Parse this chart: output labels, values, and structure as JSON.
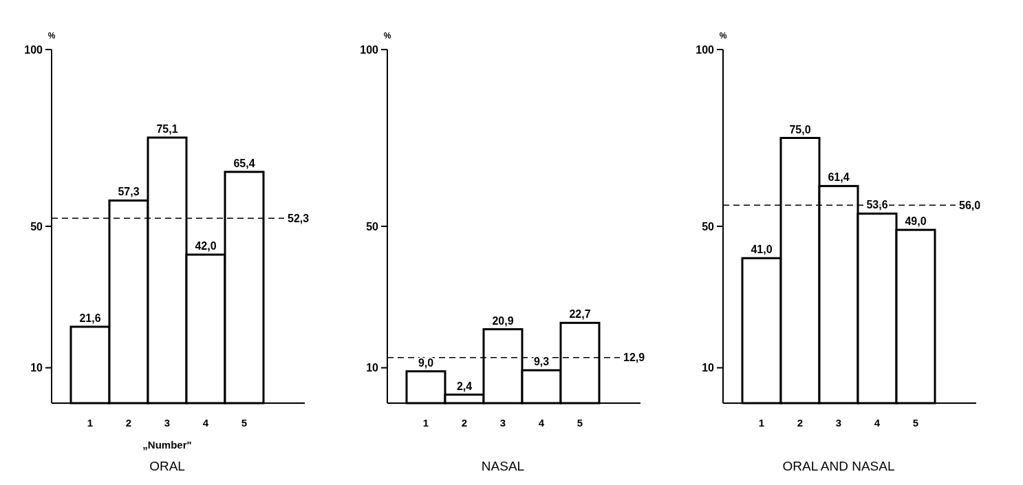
{
  "chart_data": [
    {
      "type": "bar",
      "title": "ORAL",
      "xlabel": "„Number\"",
      "ylabel": "%",
      "categories": [
        "1",
        "2",
        "3",
        "4",
        "5"
      ],
      "values": [
        21.6,
        57.3,
        75.1,
        42.0,
        65.4
      ],
      "value_labels": [
        "21,6",
        "57,3",
        "75,1",
        "42,0",
        "65,4"
      ],
      "color": "#ffffff",
      "ylim": [
        0,
        100
      ],
      "yticks": [
        10,
        50,
        100
      ],
      "ref_lines": [
        {
          "axis": "y",
          "value": 52.3,
          "label": "52,3",
          "line_style": "dashed"
        }
      ]
    },
    {
      "type": "bar",
      "title": "NASAL",
      "ylabel": "%",
      "categories": [
        "1",
        "2",
        "3",
        "4",
        "5"
      ],
      "values": [
        9.0,
        2.4,
        20.9,
        9.3,
        22.7
      ],
      "value_labels": [
        "9,0",
        "2,4",
        "20,9",
        "9,3",
        "22,7"
      ],
      "color": "#ffffff",
      "ylim": [
        0,
        100
      ],
      "yticks": [
        10,
        50,
        100
      ],
      "ref_lines": [
        {
          "axis": "y",
          "value": 12.9,
          "label": "12,9",
          "line_style": "dashed"
        }
      ]
    },
    {
      "type": "bar",
      "title": "ORAL AND NASAL",
      "ylabel": "%",
      "categories": [
        "1",
        "2",
        "3",
        "4",
        "5"
      ],
      "values": [
        41.0,
        75.0,
        61.4,
        53.6,
        49.0
      ],
      "value_labels": [
        "41,0",
        "75,0",
        "61,4",
        "53,6",
        "49,0"
      ],
      "color": "#ffffff",
      "ylim": [
        0,
        100
      ],
      "yticks": [
        10,
        50,
        100
      ],
      "ref_lines": [
        {
          "axis": "y",
          "value": 56.0,
          "label": "56,0",
          "line_style": "dashed"
        }
      ]
    }
  ]
}
